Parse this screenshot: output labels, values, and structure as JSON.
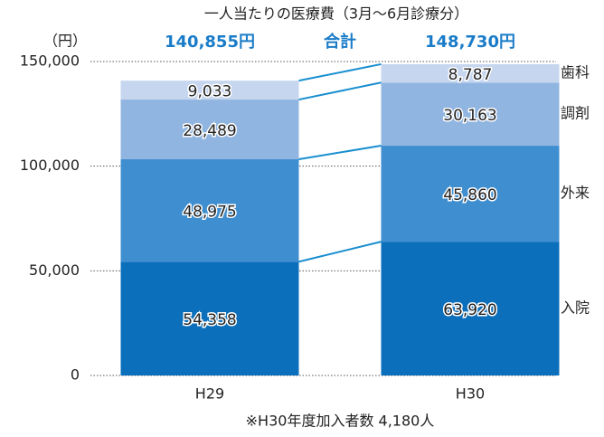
{
  "chart_data": {
    "type": "stacked_bar",
    "title": "一人当たりの医療費（3月〜6月診療分）",
    "y_unit": "（円）",
    "footnote": "※H30年度加入者数 4,180人",
    "total_title": "合計",
    "total_labels": [
      "140,855円",
      "148,730円"
    ],
    "categories": [
      "H29",
      "H30"
    ],
    "series": [
      {
        "name": "入院",
        "color": "#0b6fbb",
        "values": [
          54358,
          63920
        ],
        "value_labels": [
          "54,358",
          "63,920"
        ]
      },
      {
        "name": "外来",
        "color": "#3f8fd0",
        "values": [
          48975,
          45860
        ],
        "value_labels": [
          "48,975",
          "45,860"
        ]
      },
      {
        "name": "調剤",
        "color": "#90b5e0",
        "values": [
          28489,
          30163
        ],
        "value_labels": [
          "28,489",
          "30,163"
        ]
      },
      {
        "name": "歯科",
        "color": "#c6d6ef",
        "values": [
          9033,
          8787
        ],
        "value_labels": [
          "9,033",
          "8,787"
        ]
      }
    ],
    "ylim": [
      0,
      150000
    ],
    "yticks": [
      0,
      {
        "value": 50000,
        "label": "50,000"
      },
      {
        "value": 100000,
        "label": "100,000"
      },
      {
        "value": 150000,
        "label": "150,000"
      }
    ],
    "grid": true
  }
}
